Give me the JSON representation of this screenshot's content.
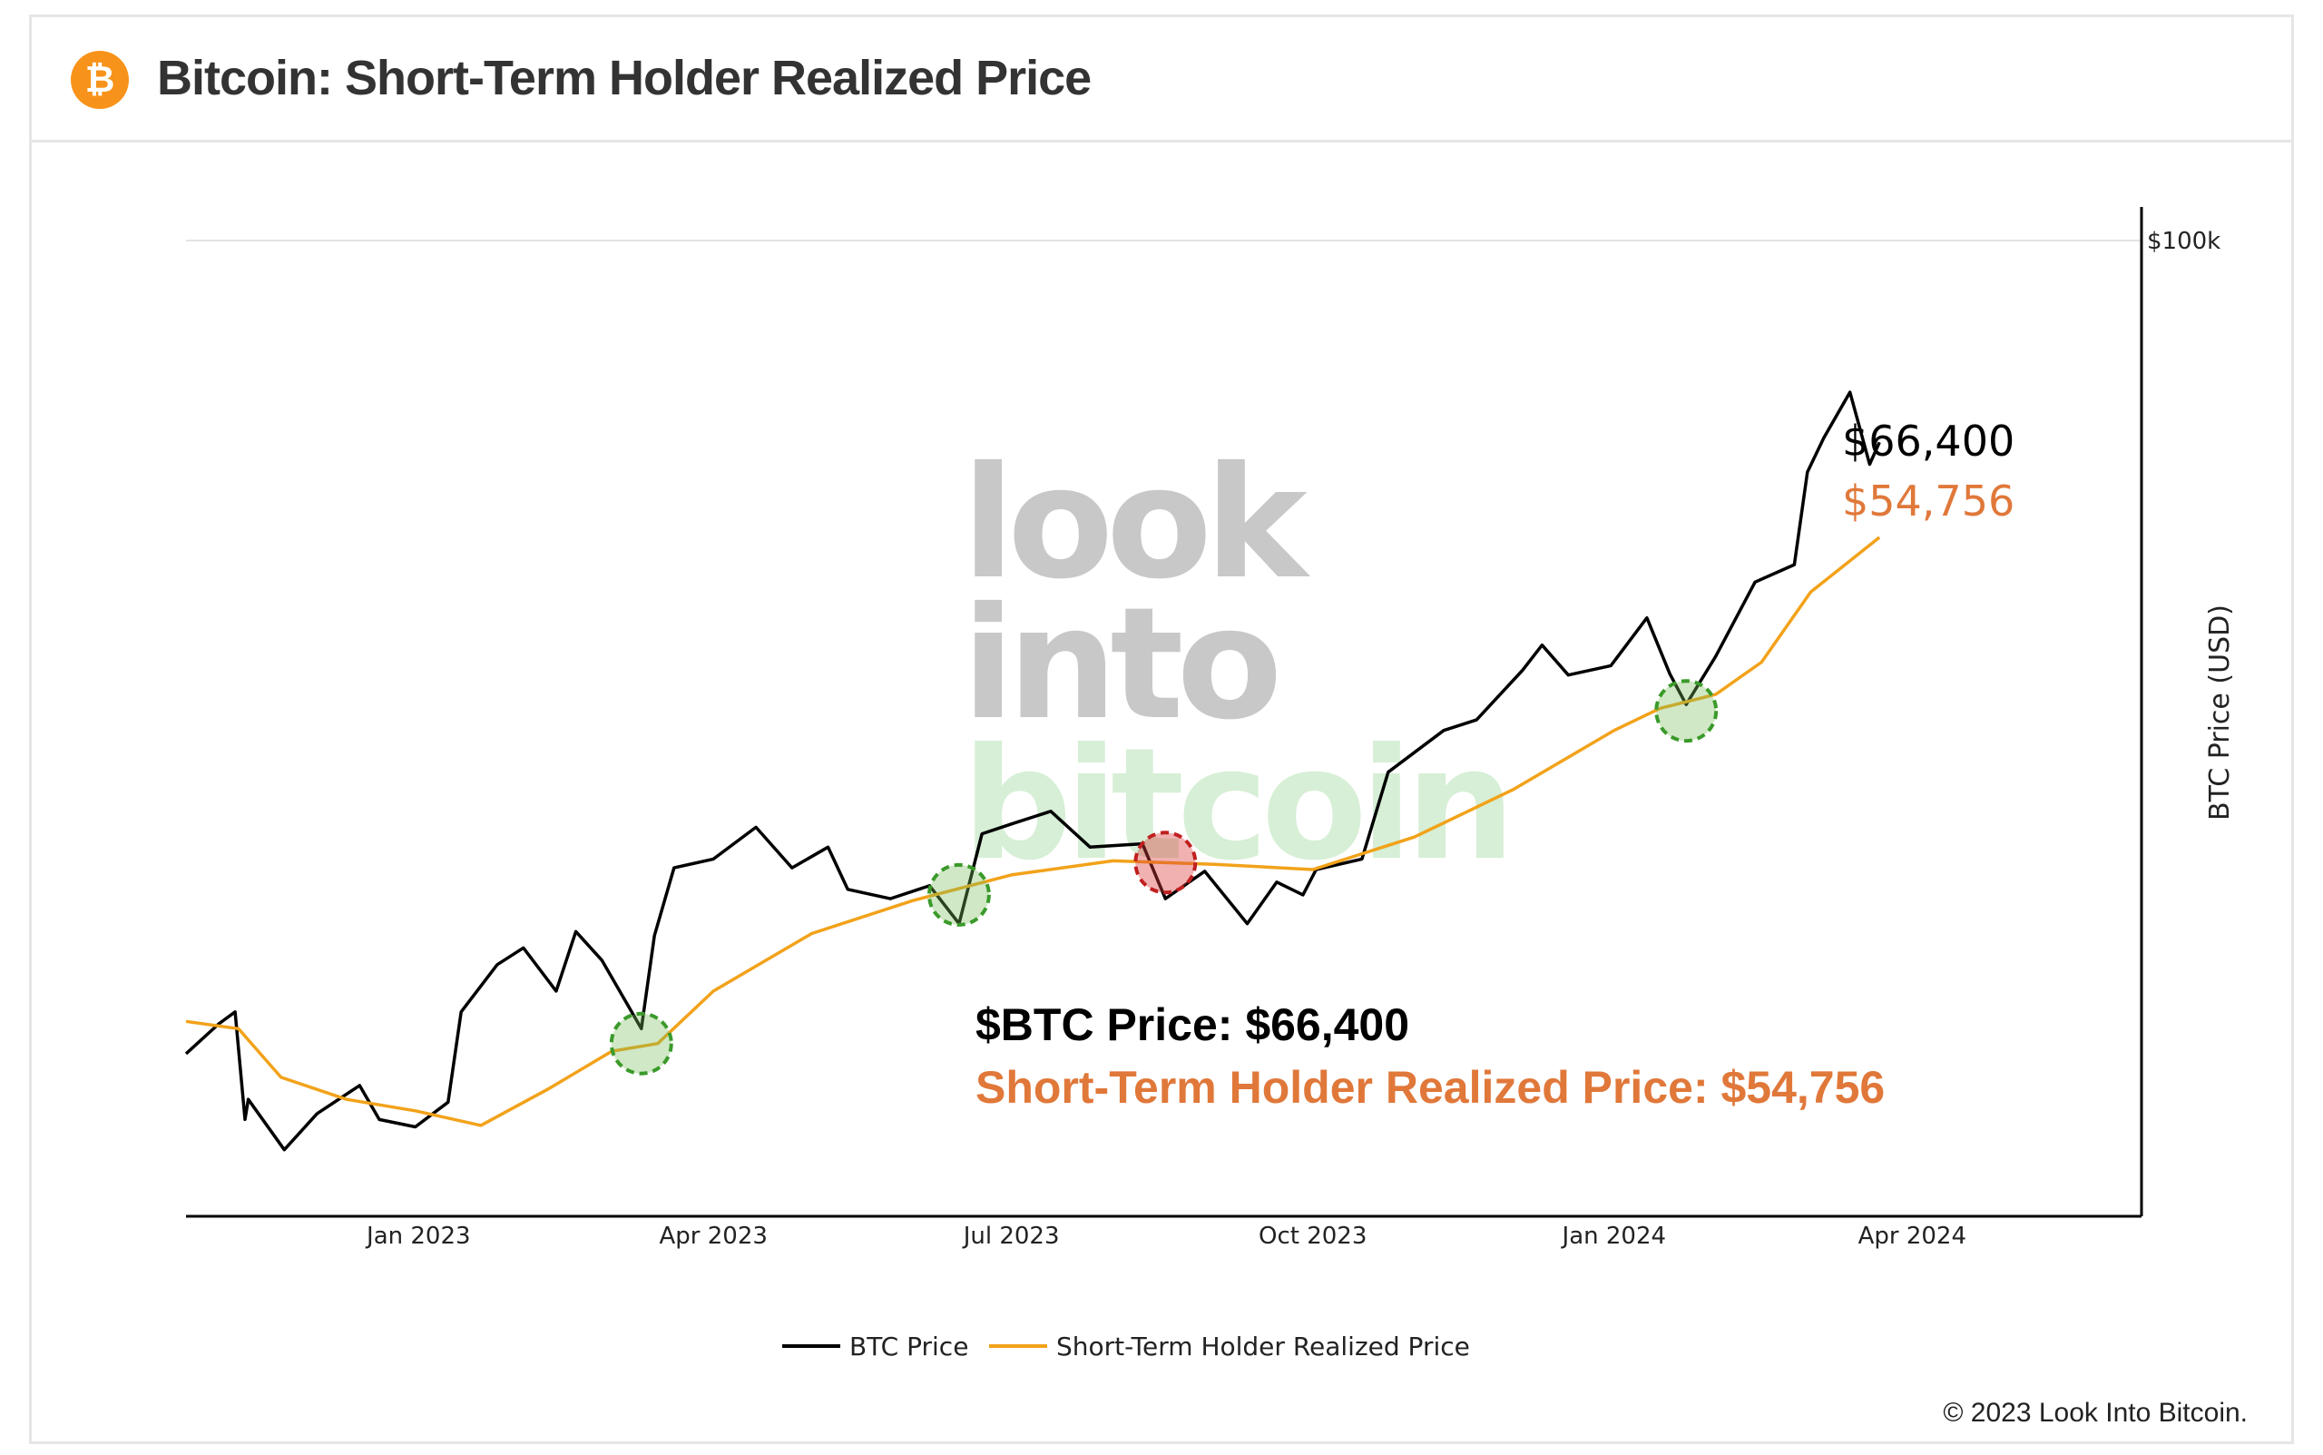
{
  "header": {
    "title": "Bitcoin: Short-Term Holder Realized Price",
    "icon": "bitcoin-logo-icon",
    "icon_glyph": "₿"
  },
  "colors": {
    "btc": "#000000",
    "sth": "#f2a21a",
    "label_orange": "#e0783a",
    "green": "#3a9a2a",
    "red": "#c02020"
  },
  "copyright": "© 2023 Look Into Bitcoin.",
  "watermark": [
    "look",
    "into",
    "bitcoin"
  ],
  "annotations": {
    "btc_end_label": "$66,400",
    "sth_end_label": "$54,756",
    "btc_price_line": "$BTC Price: $66,400",
    "sth_price_line": "Short-Term Holder Realized Price: $54,756"
  },
  "chart_data": {
    "type": "line",
    "yscale": "log",
    "ylabel": "BTC Price (USD)",
    "y_tick": "$100k",
    "ylim": [
      12000,
      100000
    ],
    "xlim": [
      "2022-10-22",
      "2024-06-10"
    ],
    "x_ticks": [
      "Jan 2023",
      "Apr 2023",
      "Jul 2023",
      "Oct 2023",
      "Jan 2024",
      "Apr 2024"
    ],
    "legend": [
      "BTC Price",
      "Short-Term Holder Realized Price"
    ],
    "legend_position": "bottom-center",
    "series": [
      {
        "name": "BTC Price",
        "points": [
          [
            "2022-10-22",
            19200
          ],
          [
            "2022-11-01",
            20400
          ],
          [
            "2022-11-06",
            20900
          ],
          [
            "2022-11-09",
            16800
          ],
          [
            "2022-11-10",
            17500
          ],
          [
            "2022-11-21",
            15800
          ],
          [
            "2022-12-01",
            17000
          ],
          [
            "2022-12-14",
            18000
          ],
          [
            "2022-12-20",
            16800
          ],
          [
            "2022-12-31",
            16550
          ],
          [
            "2023-01-10",
            17400
          ],
          [
            "2023-01-14",
            20900
          ],
          [
            "2023-01-25",
            23000
          ],
          [
            "2023-02-02",
            23800
          ],
          [
            "2023-02-12",
            21800
          ],
          [
            "2023-02-18",
            24600
          ],
          [
            "2023-02-26",
            23200
          ],
          [
            "2023-03-10",
            20200
          ],
          [
            "2023-03-14",
            24400
          ],
          [
            "2023-03-20",
            28000
          ],
          [
            "2023-04-01",
            28500
          ],
          [
            "2023-04-14",
            30400
          ],
          [
            "2023-04-25",
            28000
          ],
          [
            "2023-05-06",
            29200
          ],
          [
            "2023-05-12",
            26800
          ],
          [
            "2023-05-25",
            26300
          ],
          [
            "2023-06-06",
            27000
          ],
          [
            "2023-06-15",
            25000
          ],
          [
            "2023-06-22",
            30000
          ],
          [
            "2023-07-01",
            30600
          ],
          [
            "2023-07-13",
            31400
          ],
          [
            "2023-07-25",
            29200
          ],
          [
            "2023-08-10",
            29400
          ],
          [
            "2023-08-17",
            26300
          ],
          [
            "2023-08-29",
            27800
          ],
          [
            "2023-09-11",
            25000
          ],
          [
            "2023-09-20",
            27200
          ],
          [
            "2023-09-28",
            26500
          ],
          [
            "2023-10-02",
            27900
          ],
          [
            "2023-10-16",
            28500
          ],
          [
            "2023-10-24",
            34000
          ],
          [
            "2023-11-10",
            37000
          ],
          [
            "2023-11-20",
            37800
          ],
          [
            "2023-12-04",
            41800
          ],
          [
            "2023-12-10",
            44000
          ],
          [
            "2023-12-18",
            41400
          ],
          [
            "2023-12-31",
            42200
          ],
          [
            "2024-01-11",
            46500
          ],
          [
            "2024-01-18",
            41500
          ],
          [
            "2024-01-23",
            39000
          ],
          [
            "2024-02-01",
            43000
          ],
          [
            "2024-02-13",
            50000
          ],
          [
            "2024-02-25",
            51800
          ],
          [
            "2024-02-29",
            62500
          ],
          [
            "2024-03-05",
            67000
          ],
          [
            "2024-03-13",
            73500
          ],
          [
            "2024-03-19",
            63500
          ],
          [
            "2024-03-22",
            66400
          ]
        ]
      },
      {
        "name": "Short-Term Holder Realized Price",
        "points": [
          [
            "2022-10-22",
            20500
          ],
          [
            "2022-11-07",
            20200
          ],
          [
            "2022-11-20",
            18300
          ],
          [
            "2022-12-10",
            17500
          ],
          [
            "2022-12-31",
            17100
          ],
          [
            "2023-01-20",
            16600
          ],
          [
            "2023-02-10",
            17900
          ],
          [
            "2023-03-01",
            19300
          ],
          [
            "2023-03-15",
            19600
          ],
          [
            "2023-04-01",
            21800
          ],
          [
            "2023-05-01",
            24500
          ],
          [
            "2023-06-01",
            26200
          ],
          [
            "2023-07-01",
            27600
          ],
          [
            "2023-08-01",
            28400
          ],
          [
            "2023-09-01",
            28200
          ],
          [
            "2023-10-01",
            27900
          ],
          [
            "2023-11-01",
            29800
          ],
          [
            "2023-12-01",
            32800
          ],
          [
            "2024-01-01",
            37000
          ],
          [
            "2024-01-15",
            38700
          ],
          [
            "2024-02-01",
            39800
          ],
          [
            "2024-02-15",
            42500
          ],
          [
            "2024-03-01",
            49000
          ],
          [
            "2024-03-22",
            54756
          ]
        ]
      }
    ],
    "highlighted_points": [
      {
        "date": "2023-03-10",
        "value": 19600,
        "color": "green"
      },
      {
        "date": "2023-06-15",
        "value": 26500,
        "color": "green"
      },
      {
        "date": "2023-08-17",
        "value": 28300,
        "color": "red"
      },
      {
        "date": "2024-01-23",
        "value": 38500,
        "color": "green"
      }
    ]
  }
}
